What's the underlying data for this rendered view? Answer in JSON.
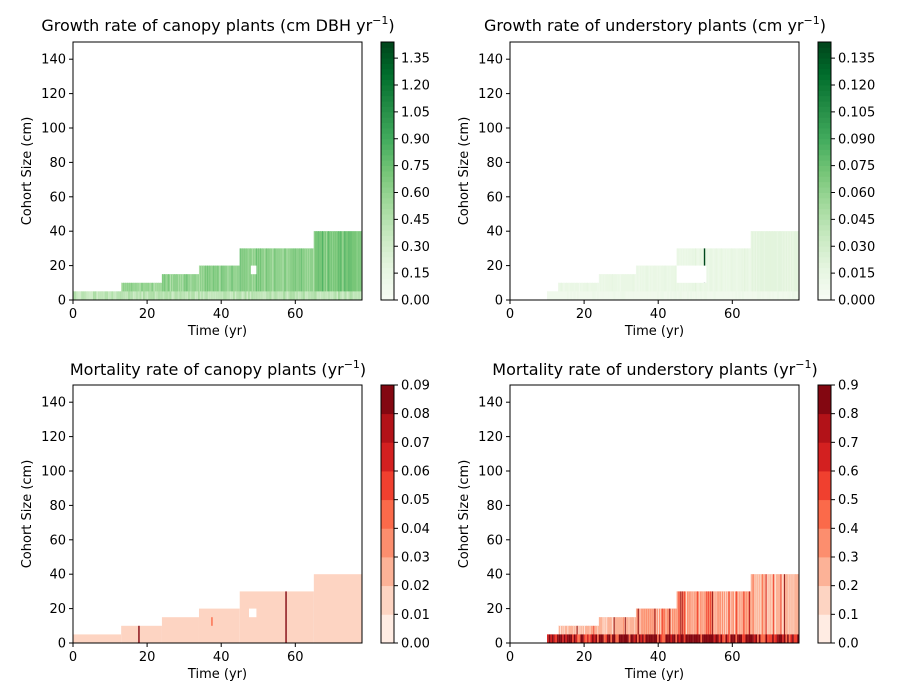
{
  "chart_data": [
    {
      "type": "heatmap",
      "title": "Growth rate of canopy plants (cm DBH yr",
      "title_sup": "−1",
      "title_end": ")",
      "xlabel": "Time (yr)",
      "ylabel": "Cohort Size (cm)",
      "xlim": [
        0,
        78
      ],
      "ylim": [
        0,
        150
      ],
      "xticks": [
        "0",
        "20",
        "40",
        "60"
      ],
      "yticks": [
        "0",
        "20",
        "40",
        "60",
        "80",
        "100",
        "120",
        "140"
      ],
      "colormap": "Greens",
      "colorbar_ticks": [
        "0.00",
        "0.15",
        "0.30",
        "0.45",
        "0.60",
        "0.75",
        "0.90",
        "1.05",
        "1.20",
        "1.35"
      ],
      "colorbar_range": [
        0,
        1.44
      ],
      "colorbar_levels": 48,
      "blocks": [
        {
          "t0": 0,
          "t1": 13,
          "ymax": 5,
          "value": 0.35
        },
        {
          "t0": 13,
          "t1": 24,
          "ymax": 10,
          "value": 0.55
        },
        {
          "t0": 24,
          "t1": 34,
          "ymax": 15,
          "value": 0.6
        },
        {
          "t0": 34,
          "t1": 45,
          "ymax": 20,
          "value": 0.6
        },
        {
          "t0": 45,
          "t1": 65,
          "ymax": 30,
          "value": 0.6
        },
        {
          "t0": 65,
          "t1": 78,
          "ymax": 40,
          "value": 0.7
        }
      ],
      "bottom_band": {
        "ymax": 5,
        "value": 0.4
      },
      "gaps": [
        {
          "t0": 48,
          "t1": 49.5,
          "y0": 15,
          "y1": 20
        }
      ]
    },
    {
      "type": "heatmap",
      "title": "Growth rate of understory plants (cm yr",
      "title_sup": "−1",
      "title_end": ")",
      "xlabel": "Time (yr)",
      "ylabel": "Cohort Size (cm)",
      "xlim": [
        0,
        78
      ],
      "ylim": [
        0,
        150
      ],
      "xticks": [
        "0",
        "20",
        "40",
        "60"
      ],
      "yticks": [
        "0",
        "20",
        "40",
        "60",
        "80",
        "100",
        "120",
        "140"
      ],
      "colormap": "Greens",
      "colorbar_ticks": [
        "0.000",
        "0.015",
        "0.030",
        "0.045",
        "0.060",
        "0.075",
        "0.090",
        "0.105",
        "0.120",
        "0.135"
      ],
      "colorbar_range": [
        0,
        0.144
      ],
      "colorbar_levels": 48,
      "blocks": [
        {
          "t0": 10,
          "t1": 13,
          "ymax": 5,
          "value": 0.01
        },
        {
          "t0": 13,
          "t1": 24,
          "ymax": 10,
          "value": 0.012
        },
        {
          "t0": 24,
          "t1": 34,
          "ymax": 15,
          "value": 0.012
        },
        {
          "t0": 34,
          "t1": 45,
          "ymax": 20,
          "value": 0.012
        },
        {
          "t0": 45,
          "t1": 65,
          "ymax": 30,
          "value": 0.014
        },
        {
          "t0": 65,
          "t1": 78,
          "ymax": 40,
          "value": 0.018
        }
      ],
      "bottom_band": {
        "ymax": 5,
        "value": 0.006
      },
      "spikes": [
        {
          "t": 52.5,
          "y0": 10,
          "y1": 30,
          "value": 0.144
        }
      ],
      "gaps": [
        {
          "t0": 45,
          "t1": 53,
          "y0": 10,
          "y1": 20
        }
      ]
    },
    {
      "type": "heatmap",
      "title": "Mortality rate of canopy plants (yr",
      "title_sup": "−1",
      "title_end": ")",
      "xlabel": "Time (yr)",
      "ylabel": "Cohort Size (cm)",
      "xlim": [
        0,
        78
      ],
      "ylim": [
        0,
        150
      ],
      "xticks": [
        "0",
        "20",
        "40",
        "60"
      ],
      "yticks": [
        "0",
        "20",
        "40",
        "60",
        "80",
        "100",
        "120",
        "140"
      ],
      "colormap": "Reds",
      "colorbar_ticks": [
        "0.00",
        "0.01",
        "0.02",
        "0.03",
        "0.04",
        "0.05",
        "0.06",
        "0.07",
        "0.08",
        "0.09"
      ],
      "colorbar_range": [
        0,
        0.09
      ],
      "colorbar_levels": 9,
      "blocks": [
        {
          "t0": 0,
          "t1": 13,
          "ymax": 5,
          "value": 0.015
        },
        {
          "t0": 13,
          "t1": 24,
          "ymax": 10,
          "value": 0.015
        },
        {
          "t0": 24,
          "t1": 34,
          "ymax": 15,
          "value": 0.015
        },
        {
          "t0": 34,
          "t1": 45,
          "ymax": 20,
          "value": 0.015
        },
        {
          "t0": 45,
          "t1": 65,
          "ymax": 30,
          "value": 0.015
        },
        {
          "t0": 65,
          "t1": 78,
          "ymax": 40,
          "value": 0.015
        }
      ],
      "spikes": [
        {
          "t": 17.8,
          "y0": 0,
          "y1": 10,
          "value": 0.085
        },
        {
          "t": 57.5,
          "y0": 0,
          "y1": 30,
          "value": 0.085
        },
        {
          "t": 37.5,
          "y0": 10,
          "y1": 15,
          "value": 0.045
        }
      ],
      "gaps": [
        {
          "t0": 47.5,
          "t1": 49.5,
          "y0": 15,
          "y1": 20
        }
      ]
    },
    {
      "type": "heatmap",
      "title": "Mortality rate of understory plants (yr",
      "title_sup": "−1",
      "title_end": ")",
      "xlabel": "Time (yr)",
      "ylabel": "Cohort Size (cm)",
      "xlim": [
        0,
        78
      ],
      "ylim": [
        0,
        150
      ],
      "xticks": [
        "0",
        "20",
        "40",
        "60"
      ],
      "yticks": [
        "0",
        "20",
        "40",
        "60",
        "80",
        "100",
        "120",
        "140"
      ],
      "colormap": "Reds",
      "colorbar_ticks": [
        "0.0",
        "0.1",
        "0.2",
        "0.3",
        "0.4",
        "0.5",
        "0.6",
        "0.7",
        "0.8",
        "0.9"
      ],
      "colorbar_range": [
        0,
        0.9
      ],
      "colorbar_levels": 9,
      "blocks": [
        {
          "t0": 10,
          "t1": 13,
          "ymax": 5,
          "value": 0.2
        },
        {
          "t0": 13,
          "t1": 24,
          "ymax": 10,
          "value": 0.25
        },
        {
          "t0": 24,
          "t1": 34,
          "ymax": 15,
          "value": 0.25
        },
        {
          "t0": 34,
          "t1": 45,
          "ymax": 20,
          "value": 0.3
        },
        {
          "t0": 45,
          "t1": 65,
          "ymax": 30,
          "value": 0.3
        },
        {
          "t0": 65,
          "t1": 78,
          "ymax": 40,
          "value": 0.25
        }
      ],
      "bottom_band": {
        "ymax": 5,
        "value": 0.85
      }
    }
  ]
}
